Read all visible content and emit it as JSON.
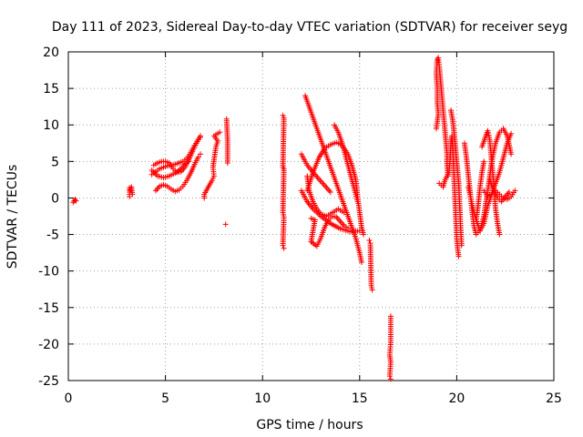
{
  "chart_data": {
    "type": "scatter",
    "title": "Day 111 of 2023, Sidereal Day-to-day VTEC variation (SDTVAR) for receiver seyg",
    "xlabel": "GPS time / hours",
    "ylabel": "SDTVAR / TECUs",
    "xlim": [
      0,
      25
    ],
    "ylim": [
      -25,
      20
    ],
    "xticks": [
      0,
      5,
      10,
      15,
      20,
      25
    ],
    "yticks": [
      -25,
      -20,
      -15,
      -10,
      -5,
      0,
      5,
      10,
      15,
      20
    ],
    "grid": true,
    "marker": "+",
    "color": "#ff0000",
    "series": [
      {
        "name": "s1",
        "points": [
          [
            0.25,
            -0.6
          ],
          [
            0.3,
            -0.4
          ],
          [
            0.35,
            -0.2
          ],
          [
            0.4,
            -0.4
          ]
        ]
      },
      {
        "name": "s2",
        "points": [
          [
            3.15,
            0.2
          ],
          [
            3.15,
            1.4
          ],
          [
            3.2,
            1.0
          ],
          [
            3.25,
            1.5
          ],
          [
            3.3,
            0.5
          ]
        ]
      },
      {
        "name": "s3",
        "points": [
          [
            4.3,
            3.2
          ],
          [
            4.5,
            3.6
          ],
          [
            4.7,
            4.0
          ],
          [
            4.9,
            4.2
          ],
          [
            5.1,
            4.4
          ],
          [
            5.3,
            4.5
          ],
          [
            5.5,
            4.6
          ],
          [
            5.7,
            4.8
          ],
          [
            5.9,
            5.0
          ],
          [
            6.1,
            5.4
          ],
          [
            6.3,
            6.2
          ],
          [
            6.5,
            7.2
          ],
          [
            6.7,
            8.0
          ],
          [
            6.8,
            8.3
          ]
        ]
      },
      {
        "name": "s4",
        "points": [
          [
            4.4,
            4.5
          ],
          [
            4.6,
            4.8
          ],
          [
            4.8,
            5.0
          ],
          [
            5.0,
            5.0
          ],
          [
            5.2,
            4.8
          ],
          [
            5.4,
            4.0
          ],
          [
            5.6,
            3.5
          ],
          [
            5.8,
            3.6
          ],
          [
            6.0,
            4.2
          ],
          [
            6.2,
            5.2
          ],
          [
            6.4,
            6.4
          ],
          [
            6.6,
            7.5
          ],
          [
            6.8,
            8.5
          ]
        ]
      },
      {
        "name": "s5",
        "points": [
          [
            4.5,
            1.0
          ],
          [
            4.7,
            1.6
          ],
          [
            4.9,
            1.8
          ],
          [
            5.1,
            1.6
          ],
          [
            5.3,
            1.2
          ],
          [
            5.5,
            0.9
          ],
          [
            5.7,
            1.1
          ],
          [
            5.9,
            1.6
          ],
          [
            6.1,
            2.4
          ],
          [
            6.3,
            3.4
          ],
          [
            6.5,
            4.6
          ],
          [
            6.7,
            5.6
          ],
          [
            6.8,
            6.0
          ]
        ]
      },
      {
        "name": "s6",
        "points": [
          [
            4.3,
            3.8
          ],
          [
            4.6,
            3.0
          ],
          [
            4.9,
            2.8
          ],
          [
            5.2,
            3.0
          ],
          [
            5.5,
            3.4
          ],
          [
            5.8,
            4.0
          ],
          [
            6.0,
            4.6
          ],
          [
            6.2,
            5.0
          ]
        ]
      },
      {
        "name": "s7",
        "points": [
          [
            7.0,
            0.0
          ],
          [
            7.0,
            0.5
          ],
          [
            7.4,
            2.4
          ],
          [
            7.5,
            3.0
          ],
          [
            7.45,
            4.2
          ],
          [
            7.6,
            7.0
          ],
          [
            7.7,
            7.8
          ],
          [
            7.5,
            8.5
          ],
          [
            7.8,
            9.0
          ]
        ]
      },
      {
        "name": "s8",
        "points": [
          [
            8.15,
            10.8
          ],
          [
            8.2,
            7.8
          ],
          [
            8.2,
            4.8
          ],
          [
            8.1,
            -3.6
          ]
        ]
      },
      {
        "name": "s9",
        "points": [
          [
            11.05,
            11.3
          ],
          [
            11.1,
            11.0
          ],
          [
            11.05,
            4.2
          ],
          [
            11.1,
            4.0
          ],
          [
            11.05,
            -2.0
          ],
          [
            11.1,
            -2.6
          ],
          [
            11.05,
            -6.5
          ],
          [
            11.1,
            -6.9
          ]
        ]
      },
      {
        "name": "s10",
        "points": [
          [
            12.2,
            14.0
          ],
          [
            12.4,
            12.5
          ],
          [
            12.6,
            11.0
          ],
          [
            12.8,
            9.5
          ],
          [
            13.0,
            8.0
          ],
          [
            13.2,
            6.5
          ],
          [
            13.4,
            5.0
          ],
          [
            13.6,
            3.5
          ],
          [
            13.8,
            2.0
          ],
          [
            14.0,
            0.5
          ],
          [
            14.2,
            -1.0
          ],
          [
            14.4,
            -2.5
          ],
          [
            14.6,
            -4.0
          ],
          [
            14.8,
            -5.5
          ],
          [
            15.0,
            -7.5
          ],
          [
            15.1,
            -8.8
          ]
        ]
      },
      {
        "name": "s11",
        "points": [
          [
            12.3,
            3.0
          ],
          [
            12.4,
            1.0
          ],
          [
            12.6,
            -0.5
          ],
          [
            12.8,
            -1.5
          ],
          [
            13.0,
            -2.2
          ],
          [
            13.3,
            -2.5
          ],
          [
            13.6,
            -2.0
          ],
          [
            13.9,
            -1.5
          ],
          [
            14.2,
            -2.0
          ]
        ]
      },
      {
        "name": "s12",
        "points": [
          [
            12.5,
            -2.8
          ],
          [
            12.7,
            -3.0
          ],
          [
            12.5,
            -6.0
          ],
          [
            12.8,
            -6.6
          ],
          [
            13.0,
            -5.5
          ],
          [
            13.2,
            -4.0
          ],
          [
            13.4,
            -3.0
          ],
          [
            13.6,
            -2.5
          ],
          [
            13.8,
            -2.6
          ],
          [
            14.0,
            -3.2
          ],
          [
            14.2,
            -3.8
          ],
          [
            14.4,
            -4.2
          ]
        ]
      },
      {
        "name": "s13",
        "points": [
          [
            12.3,
            1.0
          ],
          [
            12.6,
            3.5
          ],
          [
            12.9,
            5.5
          ],
          [
            13.2,
            6.8
          ],
          [
            13.5,
            7.3
          ],
          [
            13.8,
            7.6
          ],
          [
            14.1,
            7.2
          ],
          [
            14.4,
            6.0
          ],
          [
            14.6,
            4.5
          ],
          [
            14.8,
            2.5
          ],
          [
            14.9,
            0.0
          ],
          [
            15.0,
            -2.0
          ],
          [
            15.1,
            -4.0
          ],
          [
            15.2,
            -5.0
          ]
        ]
      },
      {
        "name": "s14",
        "points": [
          [
            12.0,
            1.0
          ],
          [
            12.3,
            -0.5
          ],
          [
            12.6,
            -1.5
          ],
          [
            13.0,
            -2.5
          ],
          [
            13.5,
            -3.5
          ],
          [
            14.0,
            -4.2
          ],
          [
            14.5,
            -4.6
          ],
          [
            15.0,
            -4.5
          ]
        ]
      },
      {
        "name": "s15",
        "points": [
          [
            12.0,
            6.0
          ],
          [
            12.3,
            4.5
          ],
          [
            12.7,
            3.2
          ],
          [
            13.1,
            2.0
          ],
          [
            13.5,
            0.8
          ]
        ]
      },
      {
        "name": "s16",
        "points": [
          [
            13.7,
            10.0
          ],
          [
            13.9,
            9.0
          ],
          [
            14.1,
            7.5
          ],
          [
            14.3,
            5.5
          ],
          [
            14.5,
            3.5
          ],
          [
            14.7,
            1.5
          ],
          [
            14.9,
            -0.5
          ]
        ]
      },
      {
        "name": "s17",
        "points": [
          [
            15.5,
            -5.8
          ],
          [
            15.55,
            -6.2
          ],
          [
            15.6,
            -12.0
          ],
          [
            15.65,
            -12.6
          ]
        ]
      },
      {
        "name": "s18",
        "points": [
          [
            16.6,
            -16.2
          ],
          [
            16.6,
            -17.6
          ],
          [
            16.6,
            -19.8
          ],
          [
            16.55,
            -21.5
          ],
          [
            16.6,
            -22.5
          ],
          [
            16.55,
            -24.4
          ],
          [
            16.6,
            -24.8
          ]
        ]
      },
      {
        "name": "s19",
        "points": [
          [
            19.05,
            19.2
          ],
          [
            19.1,
            18.0
          ],
          [
            19.15,
            16.5
          ],
          [
            19.2,
            15.0
          ],
          [
            19.25,
            13.5
          ],
          [
            19.3,
            12.0
          ],
          [
            19.35,
            10.5
          ],
          [
            19.4,
            9.0
          ],
          [
            19.45,
            7.5
          ],
          [
            19.5,
            6.0
          ],
          [
            19.5,
            4.5
          ],
          [
            19.55,
            3.0
          ]
        ]
      },
      {
        "name": "s20",
        "points": [
          [
            19.0,
            19.0
          ],
          [
            18.95,
            17.0
          ],
          [
            19.0,
            15.0
          ],
          [
            19.0,
            13.0
          ],
          [
            19.05,
            11.5
          ],
          [
            18.95,
            9.5
          ]
        ]
      },
      {
        "name": "s21",
        "points": [
          [
            19.1,
            2.0
          ],
          [
            19.3,
            1.5
          ],
          [
            19.4,
            2.5
          ],
          [
            19.6,
            3.5
          ],
          [
            19.65,
            5.0
          ],
          [
            19.7,
            7.5
          ],
          [
            19.75,
            8.5
          ],
          [
            19.8,
            6.5
          ],
          [
            19.85,
            3.5
          ],
          [
            19.9,
            0.5
          ],
          [
            19.95,
            -2.5
          ],
          [
            20.0,
            -5.5
          ],
          [
            20.05,
            -7.0
          ],
          [
            20.1,
            -8.0
          ]
        ]
      },
      {
        "name": "s22",
        "points": [
          [
            19.7,
            12.0
          ],
          [
            19.8,
            10.5
          ],
          [
            19.9,
            8.0
          ],
          [
            20.0,
            5.0
          ],
          [
            20.1,
            2.0
          ],
          [
            20.15,
            -1.0
          ],
          [
            20.2,
            -4.0
          ],
          [
            20.25,
            -6.5
          ]
        ]
      },
      {
        "name": "s23",
        "points": [
          [
            20.4,
            7.5
          ],
          [
            20.5,
            5.5
          ],
          [
            20.6,
            3.0
          ],
          [
            20.7,
            0.5
          ],
          [
            20.8,
            -2.0
          ],
          [
            20.9,
            -4.0
          ],
          [
            21.0,
            -5.0
          ],
          [
            21.2,
            -4.5
          ],
          [
            21.4,
            -2.5
          ],
          [
            21.6,
            1.0
          ],
          [
            21.8,
            5.0
          ],
          [
            22.0,
            7.5
          ],
          [
            22.2,
            9.0
          ],
          [
            22.4,
            9.5
          ],
          [
            22.6,
            8.5
          ],
          [
            22.8,
            6.0
          ]
        ]
      },
      {
        "name": "s24",
        "points": [
          [
            20.6,
            1.5
          ],
          [
            20.8,
            -1.0
          ],
          [
            21.0,
            -3.0
          ],
          [
            21.2,
            -4.5
          ],
          [
            21.4,
            -3.5
          ],
          [
            21.6,
            -1.0
          ],
          [
            21.8,
            0.5
          ],
          [
            22.0,
            2.0
          ],
          [
            22.2,
            3.5
          ],
          [
            22.4,
            5.5
          ],
          [
            22.6,
            7.5
          ],
          [
            22.8,
            8.8
          ]
        ]
      },
      {
        "name": "s25",
        "points": [
          [
            21.3,
            7.0
          ],
          [
            21.5,
            8.5
          ],
          [
            21.6,
            9.2
          ],
          [
            21.7,
            8.0
          ],
          [
            21.8,
            5.0
          ],
          [
            21.9,
            2.0
          ],
          [
            22.0,
            -1.5
          ],
          [
            22.1,
            -3.5
          ],
          [
            22.2,
            -5.0
          ]
        ]
      },
      {
        "name": "s26",
        "points": [
          [
            21.4,
            1.0
          ],
          [
            21.6,
            0.2
          ],
          [
            21.8,
            0.5
          ],
          [
            22.0,
            1.0
          ],
          [
            22.2,
            0.5
          ],
          [
            22.4,
            0.0
          ],
          [
            22.6,
            -0.2
          ],
          [
            22.8,
            0.2
          ],
          [
            23.0,
            1.0
          ]
        ]
      },
      {
        "name": "s27",
        "points": [
          [
            21.7,
            2.5
          ],
          [
            21.9,
            1.0
          ],
          [
            22.1,
            0.0
          ],
          [
            22.3,
            -0.5
          ],
          [
            22.5,
            0.2
          ],
          [
            22.7,
            0.8
          ]
        ]
      },
      {
        "name": "s28",
        "points": [
          [
            21.0,
            -3.0
          ],
          [
            21.1,
            -1.0
          ],
          [
            21.2,
            1.5
          ],
          [
            21.3,
            3.5
          ],
          [
            21.4,
            5.0
          ]
        ]
      }
    ]
  }
}
